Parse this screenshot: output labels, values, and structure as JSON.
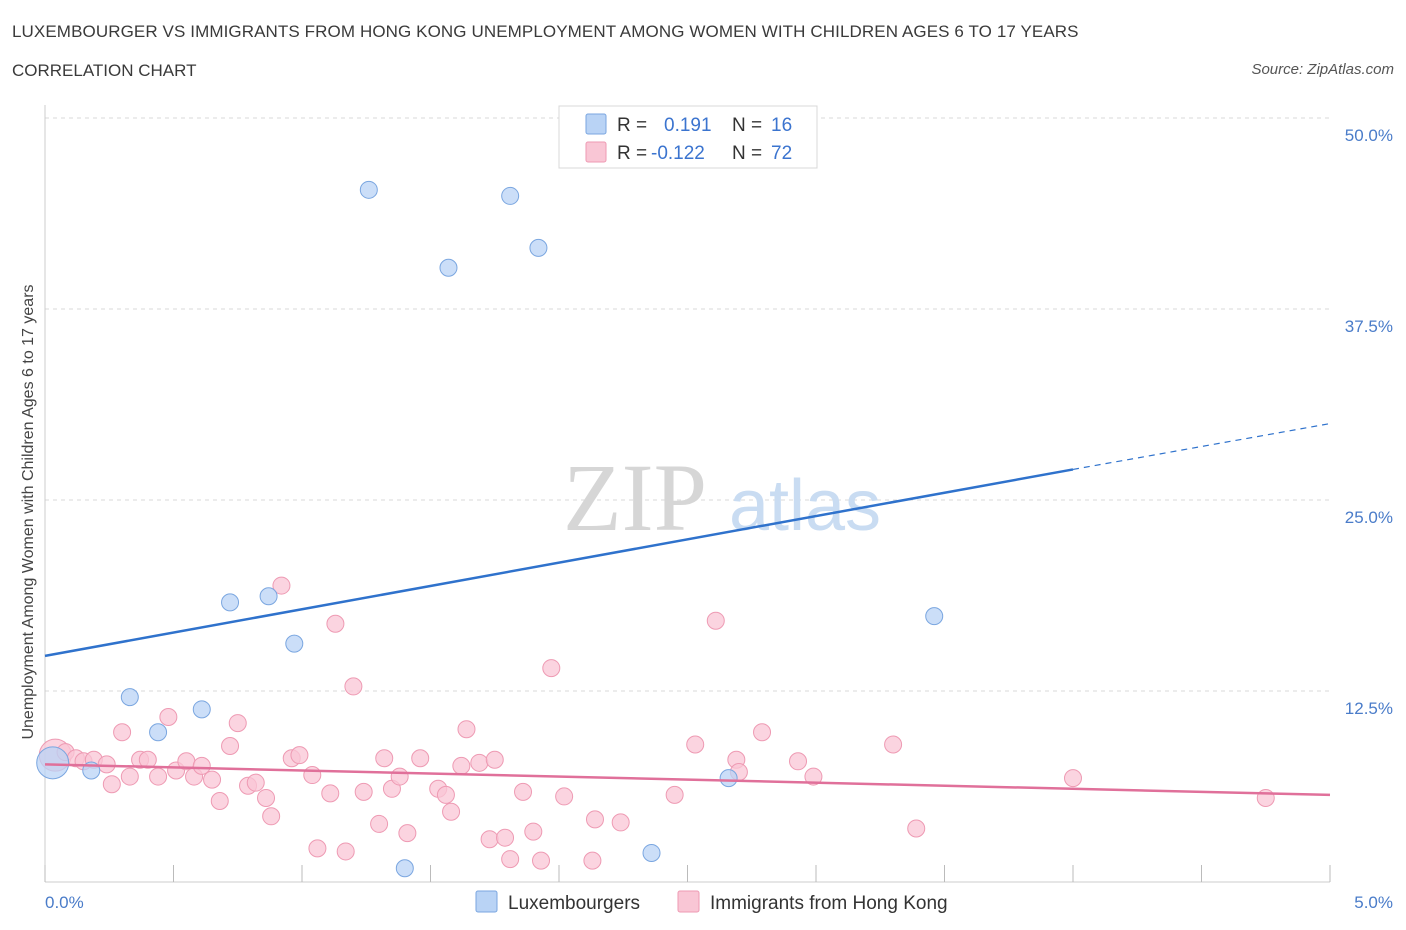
{
  "header": {
    "title": "LUXEMBOURGER VS IMMIGRANTS FROM HONG KONG UNEMPLOYMENT AMONG WOMEN WITH CHILDREN AGES 6 TO 17 YEARS",
    "subtitle": "CORRELATION CHART",
    "source": "Source: ZipAtlas.com"
  },
  "watermark": {
    "zip": "ZIP",
    "atlas": "atlas"
  },
  "colors": {
    "blue_fill": "#b9d3f5",
    "blue_stroke": "#7aa6e0",
    "blue_line": "#2f72cc",
    "pink_fill": "#f9c6d5",
    "pink_stroke": "#ee9ab3",
    "pink_line": "#e0709a",
    "grid": "#d9d9d9",
    "tick_label": "#4a7cc9"
  },
  "legend_stats": [
    {
      "r_label": "R =",
      "r_value": "0.191",
      "n_label": "N =",
      "n_value": "16"
    },
    {
      "r_label": "R =",
      "r_value": "-0.122",
      "n_label": "N =",
      "n_value": "72"
    }
  ],
  "chart_data": {
    "type": "scatter",
    "title": "LUXEMBOURGER VS IMMIGRANTS FROM HONG KONG UNEMPLOYMENT AMONG WOMEN WITH CHILDREN AGES 6 TO 17 YEARS",
    "xlabel": "",
    "ylabel": "Unemployment Among Women with Children Ages 6 to 17 years",
    "xlim": [
      0,
      5
    ],
    "ylim": [
      0,
      50
    ],
    "x_tick_labels": [
      "0.0%",
      "5.0%"
    ],
    "y_ticks": [
      12.5,
      25.0,
      37.5,
      50.0
    ],
    "y_tick_labels": [
      "12.5%",
      "25.0%",
      "37.5%",
      "50.0%"
    ],
    "grid": true,
    "legend_position": "bottom",
    "series": [
      {
        "name": "Luxembourgers",
        "color": "#b9d3f5",
        "points": [
          {
            "x": 0.03,
            "y": 7.8,
            "big": true
          },
          {
            "x": 0.18,
            "y": 7.3
          },
          {
            "x": 0.33,
            "y": 12.1
          },
          {
            "x": 0.44,
            "y": 9.8
          },
          {
            "x": 0.61,
            "y": 11.3
          },
          {
            "x": 0.72,
            "y": 18.3
          },
          {
            "x": 0.87,
            "y": 18.7
          },
          {
            "x": 0.97,
            "y": 15.6
          },
          {
            "x": 1.26,
            "y": 45.3
          },
          {
            "x": 1.4,
            "y": 0.9
          },
          {
            "x": 1.57,
            "y": 40.2
          },
          {
            "x": 1.81,
            "y": 44.9
          },
          {
            "x": 1.92,
            "y": 41.5
          },
          {
            "x": 2.36,
            "y": 1.9
          },
          {
            "x": 2.66,
            "y": 6.8
          },
          {
            "x": 3.46,
            "y": 17.4
          }
        ],
        "trend": {
          "x0": 0,
          "y0": 14.8,
          "x1": 4.0,
          "y1": 27.0,
          "x_dash_end": 5.0,
          "y_dash_end": 30.0
        }
      },
      {
        "name": "Immigrants from Hong Kong",
        "color": "#f9c6d5",
        "points": [
          {
            "x": 0.04,
            "y": 8.3,
            "big": true
          },
          {
            "x": 0.08,
            "y": 8.5
          },
          {
            "x": 0.12,
            "y": 8.1
          },
          {
            "x": 0.15,
            "y": 7.9
          },
          {
            "x": 0.19,
            "y": 8.0
          },
          {
            "x": 0.24,
            "y": 7.7
          },
          {
            "x": 0.26,
            "y": 6.4
          },
          {
            "x": 0.3,
            "y": 9.8
          },
          {
            "x": 0.33,
            "y": 6.9
          },
          {
            "x": 0.37,
            "y": 8.0
          },
          {
            "x": 0.4,
            "y": 8.0
          },
          {
            "x": 0.44,
            "y": 6.9
          },
          {
            "x": 0.48,
            "y": 10.8
          },
          {
            "x": 0.51,
            "y": 7.3
          },
          {
            "x": 0.55,
            "y": 7.9
          },
          {
            "x": 0.58,
            "y": 6.9
          },
          {
            "x": 0.61,
            "y": 7.6
          },
          {
            "x": 0.65,
            "y": 6.7
          },
          {
            "x": 0.68,
            "y": 5.3
          },
          {
            "x": 0.72,
            "y": 8.9
          },
          {
            "x": 0.75,
            "y": 10.4
          },
          {
            "x": 0.79,
            "y": 6.3
          },
          {
            "x": 0.82,
            "y": 6.5
          },
          {
            "x": 0.86,
            "y": 5.5
          },
          {
            "x": 0.88,
            "y": 4.3
          },
          {
            "x": 0.92,
            "y": 19.4
          },
          {
            "x": 0.96,
            "y": 8.1
          },
          {
            "x": 0.99,
            "y": 8.3
          },
          {
            "x": 1.04,
            "y": 7.0
          },
          {
            "x": 1.06,
            "y": 2.2
          },
          {
            "x": 1.11,
            "y": 5.8
          },
          {
            "x": 1.13,
            "y": 16.9
          },
          {
            "x": 1.17,
            "y": 2.0
          },
          {
            "x": 1.2,
            "y": 12.8
          },
          {
            "x": 1.24,
            "y": 5.9
          },
          {
            "x": 1.3,
            "y": 3.8
          },
          {
            "x": 1.32,
            "y": 8.1
          },
          {
            "x": 1.35,
            "y": 6.1
          },
          {
            "x": 1.38,
            "y": 6.9
          },
          {
            "x": 1.41,
            "y": 3.2
          },
          {
            "x": 1.46,
            "y": 8.1
          },
          {
            "x": 1.53,
            "y": 6.1
          },
          {
            "x": 1.56,
            "y": 5.7
          },
          {
            "x": 1.58,
            "y": 4.6
          },
          {
            "x": 1.62,
            "y": 7.6
          },
          {
            "x": 1.64,
            "y": 10.0
          },
          {
            "x": 1.69,
            "y": 7.8
          },
          {
            "x": 1.73,
            "y": 2.8
          },
          {
            "x": 1.75,
            "y": 8.0
          },
          {
            "x": 1.79,
            "y": 2.9
          },
          {
            "x": 1.81,
            "y": 1.5
          },
          {
            "x": 1.86,
            "y": 5.9
          },
          {
            "x": 1.9,
            "y": 3.3
          },
          {
            "x": 1.93,
            "y": 1.4
          },
          {
            "x": 1.97,
            "y": 14.0
          },
          {
            "x": 2.02,
            "y": 5.6
          },
          {
            "x": 2.13,
            "y": 1.4
          },
          {
            "x": 2.14,
            "y": 4.1
          },
          {
            "x": 2.24,
            "y": 3.9
          },
          {
            "x": 2.45,
            "y": 5.7
          },
          {
            "x": 2.53,
            "y": 9.0
          },
          {
            "x": 2.61,
            "y": 17.1
          },
          {
            "x": 2.69,
            "y": 8.0
          },
          {
            "x": 2.7,
            "y": 7.2
          },
          {
            "x": 2.79,
            "y": 9.8
          },
          {
            "x": 2.93,
            "y": 7.9
          },
          {
            "x": 2.99,
            "y": 6.9
          },
          {
            "x": 3.3,
            "y": 9.0
          },
          {
            "x": 3.39,
            "y": 3.5
          },
          {
            "x": 4.0,
            "y": 6.8
          },
          {
            "x": 4.75,
            "y": 5.5
          }
        ],
        "trend": {
          "x0": 0,
          "y0": 7.7,
          "x1": 5.0,
          "y1": 5.7
        }
      }
    ]
  }
}
